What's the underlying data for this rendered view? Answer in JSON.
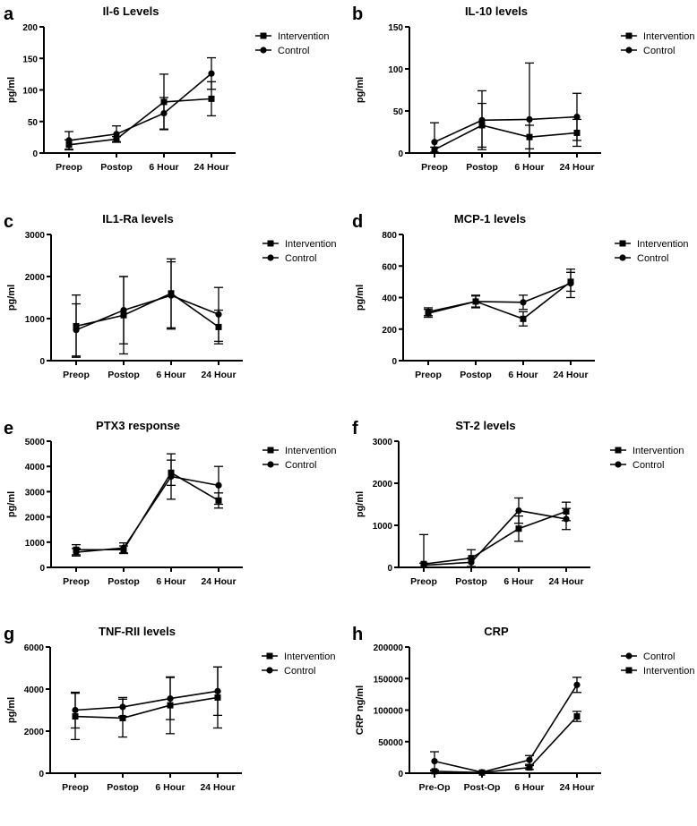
{
  "chart_data": [
    {
      "type": "line",
      "panel_label": "a",
      "title": "Il-6 Levels",
      "ylabel": "pg/ml",
      "ylim": [
        0,
        200
      ],
      "yticks": [
        0,
        50,
        100,
        150,
        200
      ],
      "categories": [
        "Preop",
        "Postop",
        "6 Hour",
        "24 Hour"
      ],
      "series": [
        {
          "name": "Intervention",
          "marker": "square",
          "values": [
            13,
            22,
            81,
            86
          ],
          "errors": [
            8,
            4,
            44,
            27
          ]
        },
        {
          "name": "Control",
          "marker": "circle",
          "values": [
            20,
            30,
            63,
            126
          ],
          "errors": [
            14,
            13,
            25,
            25
          ]
        }
      ]
    },
    {
      "type": "line",
      "panel_label": "b",
      "title": "IL-10 levels",
      "ylabel": "pg/ml",
      "ylim": [
        0,
        150
      ],
      "yticks": [
        0,
        50,
        100,
        150
      ],
      "categories": [
        "Preop",
        "Postop",
        "6 Hour",
        "24 Hour"
      ],
      "series": [
        {
          "name": "Intervention",
          "marker": "square",
          "values": [
            4,
            33,
            19,
            24
          ],
          "errors": [
            3,
            26,
            14,
            16
          ]
        },
        {
          "name": "Control",
          "marker": "circle",
          "values": [
            13,
            39,
            40,
            43
          ],
          "errors": [
            23,
            35,
            67,
            28
          ]
        }
      ]
    },
    {
      "type": "line",
      "panel_label": "c",
      "title": "IL1-Ra levels",
      "ylabel": "pg/ml",
      "ylim": [
        0,
        3000
      ],
      "yticks": [
        0,
        1000,
        2000,
        3000
      ],
      "categories": [
        "Preop",
        "Postop",
        "6 Hour",
        "24 Hour"
      ],
      "series": [
        {
          "name": "Intervention",
          "marker": "square",
          "values": [
            820,
            1080,
            1600,
            800
          ],
          "errors": [
            740,
            920,
            820,
            400
          ]
        },
        {
          "name": "Control",
          "marker": "circle",
          "values": [
            730,
            1200,
            1550,
            1100
          ],
          "errors": [
            620,
            800,
            800,
            640
          ]
        }
      ]
    },
    {
      "type": "line",
      "panel_label": "d",
      "title": "MCP-1 levels",
      "ylabel": "pg/ml",
      "ylim": [
        0,
        800
      ],
      "yticks": [
        0,
        200,
        400,
        600,
        800
      ],
      "categories": [
        "Preop",
        "Postop",
        "6 Hour",
        "24 Hour"
      ],
      "series": [
        {
          "name": "Intervention",
          "marker": "square",
          "values": [
            300,
            375,
            265,
            500
          ],
          "errors": [
            25,
            40,
            45,
            60
          ]
        },
        {
          "name": "Control",
          "marker": "circle",
          "values": [
            310,
            375,
            370,
            490
          ],
          "errors": [
            25,
            35,
            45,
            90
          ]
        }
      ]
    },
    {
      "type": "line",
      "panel_label": "e",
      "title": "PTX3 response",
      "ylabel": "pg/ml",
      "ylim": [
        0,
        5000
      ],
      "yticks": [
        0,
        1000,
        2000,
        3000,
        4000,
        5000
      ],
      "categories": [
        "Preop",
        "Postop",
        "6 Hour",
        "24 Hour"
      ],
      "series": [
        {
          "name": "Intervention",
          "marker": "square",
          "values": [
            700,
            700,
            3750,
            2650
          ],
          "errors": [
            200,
            150,
            500,
            300
          ]
        },
        {
          "name": "Control",
          "marker": "circle",
          "values": [
            600,
            770,
            3600,
            3250
          ],
          "errors": [
            150,
            200,
            900,
            750
          ]
        }
      ]
    },
    {
      "type": "line",
      "panel_label": "f",
      "title": "ST-2 levels",
      "ylabel": "pg/ml",
      "ylim": [
        0,
        3000
      ],
      "yticks": [
        0,
        1000,
        2000,
        3000
      ],
      "categories": [
        "Preop",
        "Postop",
        "6 Hour",
        "24 Hour"
      ],
      "series": [
        {
          "name": "Intervention",
          "marker": "square",
          "values": [
            80,
            220,
            920,
            1330
          ],
          "errors": [
            700,
            200,
            300,
            220
          ]
        },
        {
          "name": "Control",
          "marker": "circle",
          "values": [
            50,
            120,
            1350,
            1150
          ],
          "errors": [
            50,
            100,
            300,
            250
          ]
        }
      ]
    },
    {
      "type": "line",
      "panel_label": "g",
      "title": "TNF-RII levels",
      "ylabel": "pg/ml",
      "ylim": [
        0,
        6000
      ],
      "yticks": [
        0,
        2000,
        4000,
        6000
      ],
      "categories": [
        "Preop",
        "Postop",
        "6 Hour",
        "24 Hour"
      ],
      "series": [
        {
          "name": "Intervention",
          "marker": "square",
          "values": [
            2700,
            2620,
            3230,
            3600
          ],
          "errors": [
            1100,
            900,
            1350,
            1450
          ]
        },
        {
          "name": "Control",
          "marker": "circle",
          "values": [
            3000,
            3150,
            3550,
            3900
          ],
          "errors": [
            850,
            450,
            1000,
            1150
          ]
        }
      ]
    },
    {
      "type": "line",
      "panel_label": "h",
      "title": "CRP",
      "ylabel": "CRP ng/ml",
      "ylim": [
        0,
        200000
      ],
      "yticks": [
        0,
        50000,
        100000,
        150000,
        200000
      ],
      "categories": [
        "Pre-Op",
        "Post-Op",
        "6 Hour",
        "24 Hour"
      ],
      "series": [
        {
          "name": "Control",
          "marker": "circle",
          "values": [
            19000,
            1500,
            21000,
            140000
          ],
          "errors": [
            15000,
            1000,
            7000,
            12000
          ]
        },
        {
          "name": "Intervention",
          "marker": "square",
          "values": [
            3000,
            1000,
            9000,
            90000
          ],
          "errors": [
            2000,
            500,
            3000,
            8000
          ]
        }
      ]
    }
  ]
}
